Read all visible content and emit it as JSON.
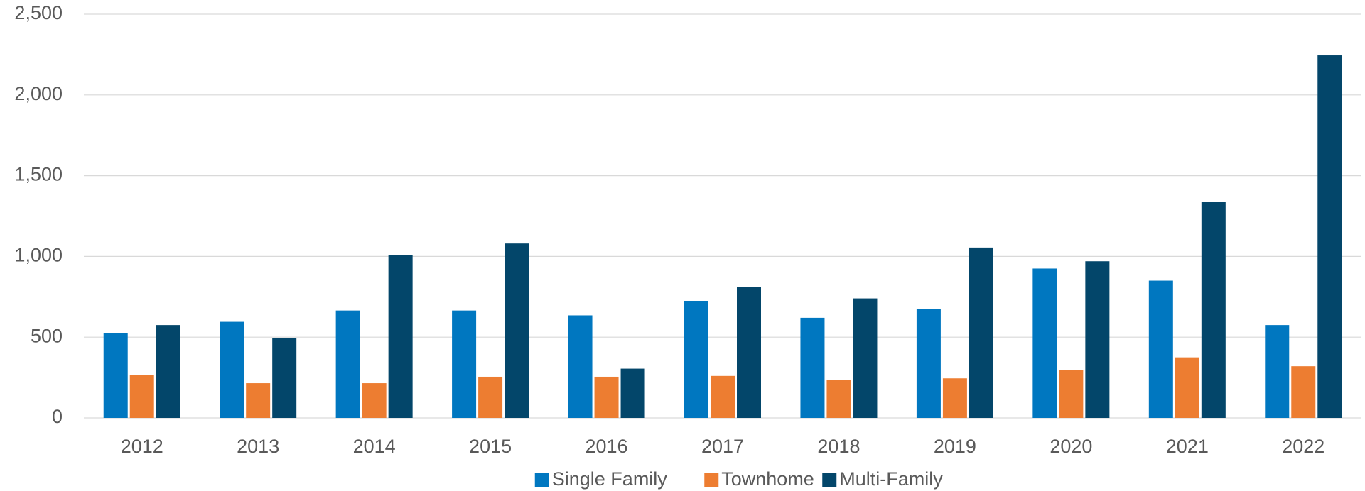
{
  "chart_data": {
    "type": "bar",
    "categories": [
      "2012",
      "2013",
      "2014",
      "2015",
      "2016",
      "2017",
      "2018",
      "2019",
      "2020",
      "2021",
      "2022"
    ],
    "series": [
      {
        "name": "Single Family",
        "color": "#0077c0",
        "values": [
          525,
          595,
          665,
          665,
          635,
          725,
          620,
          675,
          925,
          850,
          575
        ]
      },
      {
        "name": "Townhome",
        "color": "#ed7d31",
        "values": [
          265,
          215,
          215,
          255,
          255,
          260,
          235,
          245,
          295,
          375,
          320
        ]
      },
      {
        "name": "Multi-Family",
        "color": "#03466a",
        "values": [
          575,
          495,
          1010,
          1080,
          305,
          810,
          740,
          1055,
          970,
          1340,
          2245
        ]
      }
    ],
    "ylim": [
      0,
      2500
    ],
    "yticks": [
      0,
      500,
      {
        "value": 1000,
        "label": "1,000"
      },
      {
        "value": 1500,
        "label": "1,500"
      },
      {
        "value": 2000,
        "label": "2,000"
      },
      {
        "value": 2500,
        "label": "2,500"
      }
    ],
    "grid": true,
    "legend": "bottom"
  }
}
